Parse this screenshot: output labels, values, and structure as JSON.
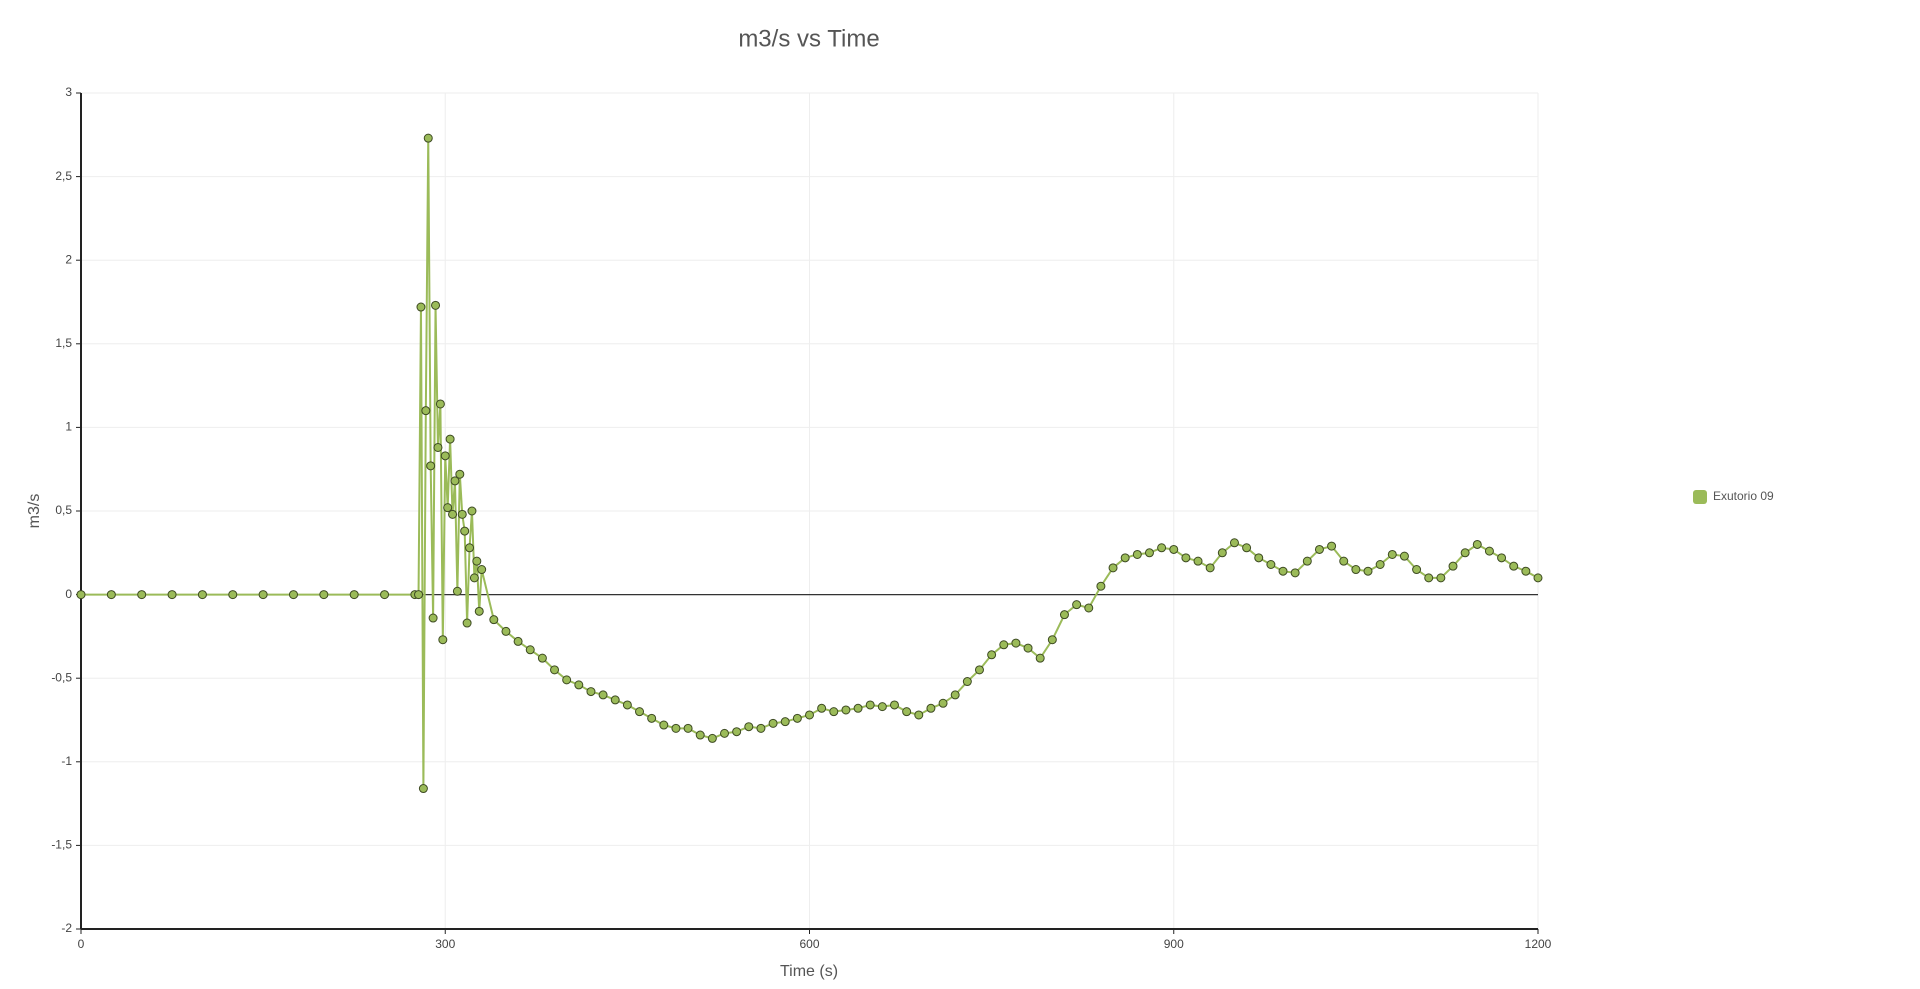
{
  "chart_data": {
    "type": "line",
    "title": "m3/s vs Time",
    "x_label": "Time (s)",
    "y_label": "m3/s",
    "legend": "right",
    "grid": true,
    "xlim": [
      0,
      1200
    ],
    "ylim": [
      -2,
      3
    ],
    "xticks": [
      0,
      300,
      600,
      900,
      1200
    ],
    "yticks": [
      -2,
      {
        "value": -1.5,
        "label": "-1,5"
      },
      -1,
      {
        "value": -0.5,
        "label": "-0,5"
      },
      0,
      {
        "value": 0.5,
        "label": "0,5"
      },
      1,
      {
        "value": 1.5,
        "label": "1,5"
      },
      2,
      {
        "value": 2.5,
        "label": "2,5"
      },
      3
    ],
    "x": [
      0,
      25,
      50,
      75,
      100,
      125,
      150,
      175,
      200,
      225,
      250,
      275,
      278,
      280,
      282,
      284,
      286,
      288,
      290,
      292,
      294,
      296,
      298,
      300,
      302,
      304,
      306,
      308,
      310,
      312,
      314,
      316,
      318,
      320,
      322,
      324,
      326,
      328,
      330,
      340,
      350,
      360,
      370,
      380,
      390,
      400,
      410,
      420,
      430,
      440,
      450,
      460,
      470,
      480,
      490,
      500,
      510,
      520,
      530,
      540,
      550,
      560,
      570,
      580,
      590,
      600,
      610,
      620,
      630,
      640,
      650,
      660,
      670,
      680,
      690,
      700,
      710,
      720,
      730,
      740,
      750,
      760,
      770,
      780,
      790,
      800,
      810,
      820,
      830,
      840,
      850,
      860,
      870,
      880,
      890,
      900,
      910,
      920,
      930,
      940,
      950,
      960,
      970,
      980,
      990,
      1000,
      1010,
      1020,
      1030,
      1040,
      1050,
      1060,
      1070,
      1080,
      1090,
      1100,
      1110,
      1120,
      1130,
      1140,
      1150,
      1160,
      1170,
      1180,
      1190,
      1200
    ],
    "series": [
      {
        "name": "Exutorio 09",
        "color": "#9bbb59",
        "values": [
          0,
          0,
          0,
          0,
          0,
          0,
          0,
          0,
          0,
          0,
          0,
          0,
          0,
          1.72,
          -1.16,
          1.1,
          2.73,
          0.77,
          -0.14,
          1.73,
          0.88,
          1.14,
          -0.27,
          0.83,
          0.52,
          0.93,
          0.48,
          0.68,
          0.02,
          0.72,
          0.48,
          0.38,
          -0.17,
          0.28,
          0.5,
          0.1,
          0.2,
          -0.1,
          0.15,
          -0.15,
          -0.22,
          -0.28,
          -0.33,
          -0.38,
          -0.45,
          -0.51,
          -0.54,
          -0.58,
          -0.6,
          -0.63,
          -0.66,
          -0.7,
          -0.74,
          -0.78,
          -0.8,
          -0.8,
          -0.84,
          -0.86,
          -0.83,
          -0.82,
          -0.79,
          -0.8,
          -0.77,
          -0.76,
          -0.74,
          -0.72,
          -0.68,
          -0.7,
          -0.69,
          -0.68,
          -0.66,
          -0.67,
          -0.66,
          -0.7,
          -0.72,
          -0.68,
          -0.65,
          -0.6,
          -0.52,
          -0.45,
          -0.36,
          -0.3,
          -0.29,
          -0.32,
          -0.38,
          -0.27,
          -0.12,
          -0.06,
          -0.08,
          0.05,
          0.16,
          0.22,
          0.24,
          0.25,
          0.28,
          0.27,
          0.22,
          0.2,
          0.16,
          0.25,
          0.31,
          0.28,
          0.22,
          0.18,
          0.14,
          0.13,
          0.2,
          0.27,
          0.29,
          0.2,
          0.15,
          0.14,
          0.18,
          0.24,
          0.23,
          0.15,
          0.1,
          0.1,
          0.17,
          0.25,
          0.3,
          0.26,
          0.22,
          0.17,
          0.14,
          0.1
        ]
      }
    ]
  }
}
